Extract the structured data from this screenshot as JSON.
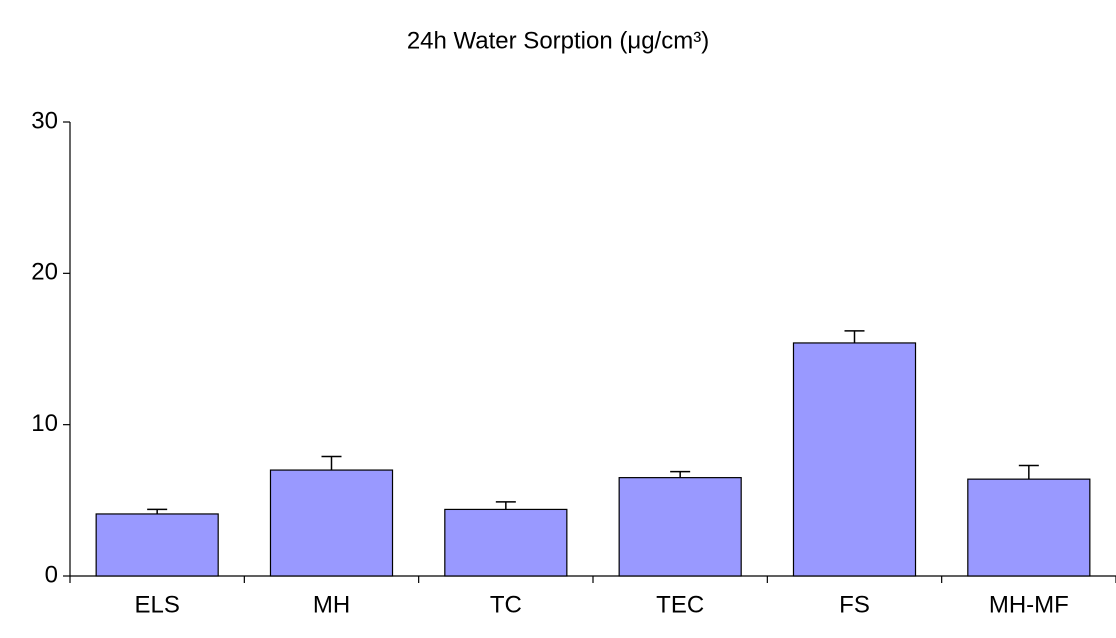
{
  "chart_data": {
    "type": "bar",
    "title": "24h Water Sorption (μg/cm³)",
    "categories": [
      "ELS",
      "MH",
      "TC",
      "TEC",
      "FS",
      "MH-MF"
    ],
    "values": [
      4.1,
      7.0,
      4.4,
      6.5,
      15.4,
      6.4
    ],
    "errors": [
      0.3,
      0.9,
      0.5,
      0.4,
      0.8,
      0.9
    ],
    "color": "#9999ff",
    "ylim": [
      0,
      30
    ],
    "yticks": [
      0,
      10,
      20,
      30
    ],
    "grid": false
  }
}
